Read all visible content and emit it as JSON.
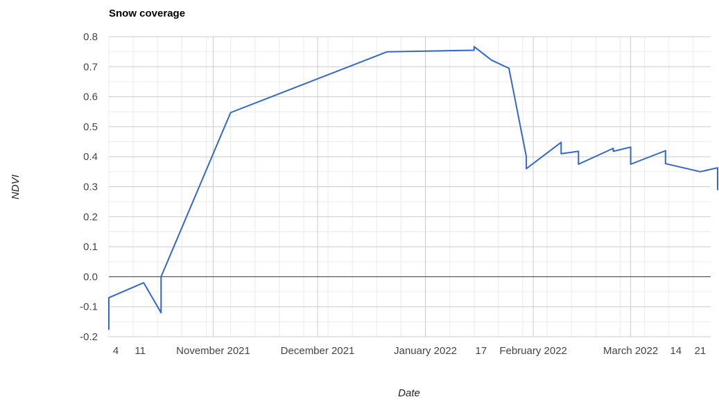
{
  "chart_data": {
    "type": "line",
    "title": "Snow coverage",
    "xlabel": "Date",
    "ylabel": "NDVI",
    "ylim": [
      -0.2,
      0.8
    ],
    "y_ticks": [
      "0.8",
      "0.7",
      "0.6",
      "0.5",
      "0.4",
      "0.3",
      "0.2",
      "0.1",
      "0.0",
      "-0.1",
      "-0.2"
    ],
    "x_range": [
      "2021-10-02",
      "2022-03-24"
    ],
    "x_ticks": [
      {
        "date": "2021-10-04",
        "label": "4"
      },
      {
        "date": "2021-10-11",
        "label": "11"
      },
      {
        "date": "2021-11-01",
        "label": "November 2021"
      },
      {
        "date": "2021-12-01",
        "label": "December 2021"
      },
      {
        "date": "2022-01-01",
        "label": "January 2022"
      },
      {
        "date": "2022-01-17",
        "label": "17"
      },
      {
        "date": "2022-02-01",
        "label": "February 2022"
      },
      {
        "date": "2022-03-01",
        "label": "March 2022"
      },
      {
        "date": "2022-03-14",
        "label": "14"
      },
      {
        "date": "2022-03-21",
        "label": "21"
      }
    ],
    "grid": true,
    "line_color": "#3366cc",
    "series": [
      {
        "points": [
          [
            "2021-10-02",
            -0.175
          ],
          [
            "2021-10-02",
            -0.07
          ],
          [
            "2021-10-12",
            -0.02
          ],
          [
            "2021-10-17",
            -0.12
          ],
          [
            "2021-10-17",
            0.0
          ],
          [
            "2021-11-06",
            0.547
          ],
          [
            "2021-12-21",
            0.75
          ],
          [
            "2022-01-15",
            0.755
          ],
          [
            "2022-01-15",
            0.767
          ],
          [
            "2022-01-20",
            0.722
          ],
          [
            "2022-01-25",
            0.695
          ],
          [
            "2022-01-30",
            0.4
          ],
          [
            "2022-01-30",
            0.36
          ],
          [
            "2022-02-09",
            0.448
          ],
          [
            "2022-02-09",
            0.41
          ],
          [
            "2022-02-14",
            0.418
          ],
          [
            "2022-02-14",
            0.375
          ],
          [
            "2022-02-24",
            0.428
          ],
          [
            "2022-02-24",
            0.418
          ],
          [
            "2022-03-01",
            0.432
          ],
          [
            "2022-03-01",
            0.375
          ],
          [
            "2022-03-11",
            0.42
          ],
          [
            "2022-03-11",
            0.377
          ],
          [
            "2022-03-21",
            0.35
          ],
          [
            "2022-03-26",
            0.363
          ],
          [
            "2022-03-26",
            0.29
          ]
        ]
      }
    ]
  }
}
